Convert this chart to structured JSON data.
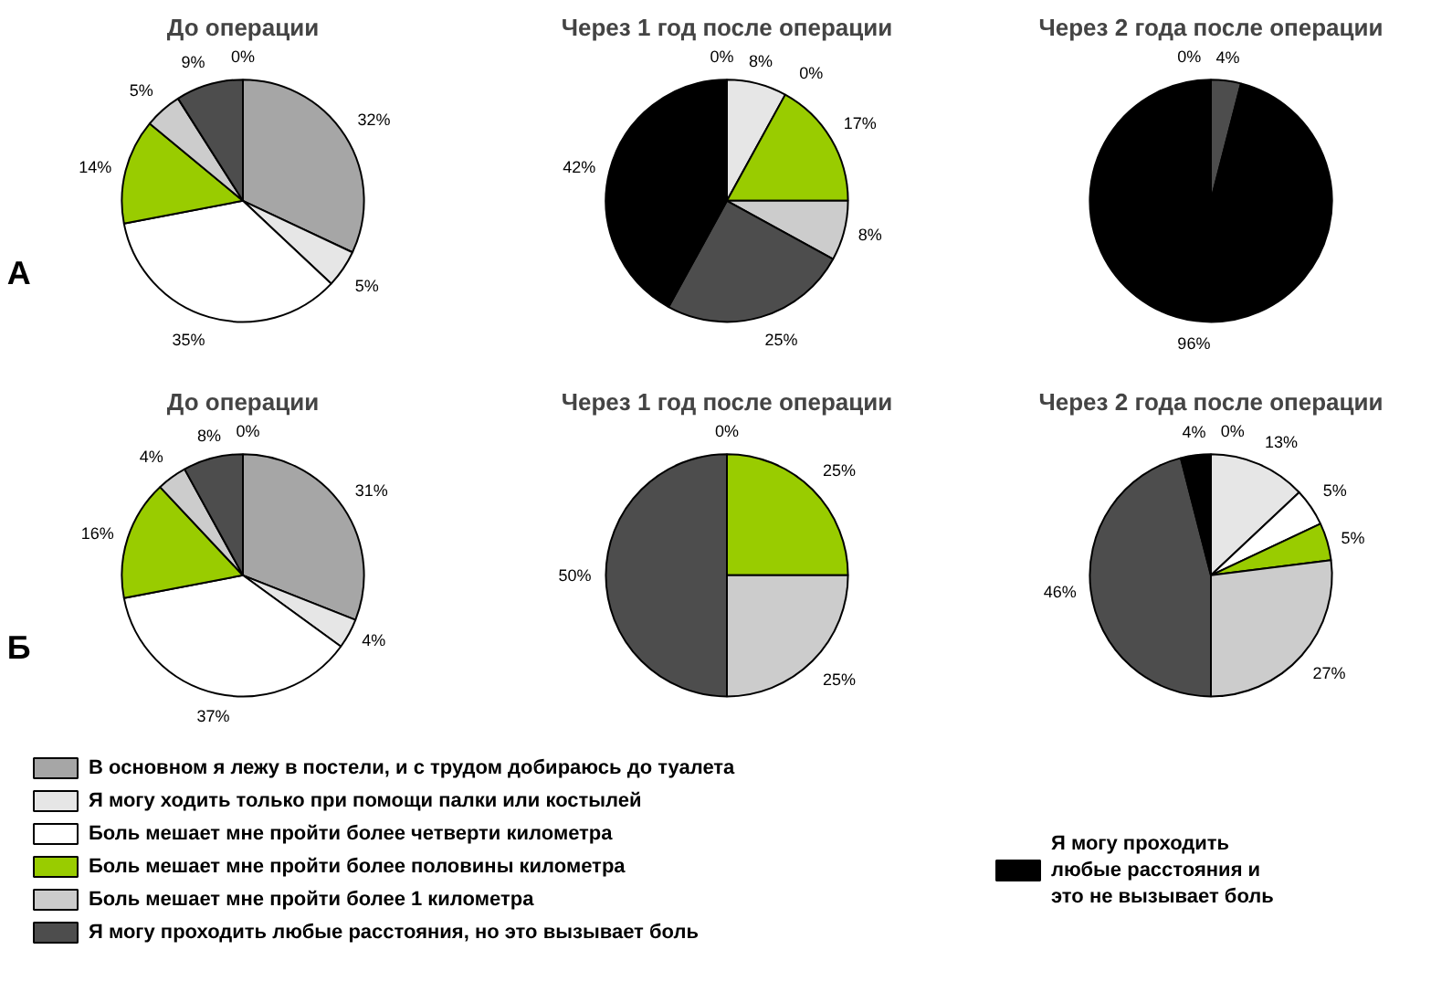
{
  "chart_data": [
    {
      "type": "pie",
      "title": "До операции",
      "categories": [
        "В основном я лежу в постели, и с трудом добираюсь до туалета",
        "Я могу ходить только при помощи палки или костылей",
        "Боль мешает мне пройти более четверти километра",
        "Боль мешает мне пройти более половины километра",
        "Боль мешает мне пройти более 1 километра",
        "Я могу проходить любые расстояния, но это вызывает боль",
        "Я могу проходить любые расстояния и это не вызывает боль"
      ],
      "values": [
        32,
        5,
        35,
        14,
        5,
        9,
        0
      ],
      "value_labels": [
        "32%",
        "5%",
        "35%",
        "14%",
        "5%",
        "9%",
        "0%"
      ],
      "colors": [
        "#a6a6a6",
        "#e6e6e6",
        "#ffffff",
        "#99cc00",
        "#cccccc",
        "#4d4d4d",
        "#000000"
      ],
      "legend": "bottom",
      "annotations": [
        "А"
      ]
    },
    {
      "type": "pie",
      "title": "Через 1 год после операции",
      "categories": [
        null,
        null,
        null,
        null,
        null,
        null,
        null
      ],
      "values": [
        0,
        8,
        0,
        17,
        8,
        25,
        42
      ],
      "value_labels": [
        "0%",
        "8%",
        "0%",
        "17%",
        "8%",
        "25%",
        "42%"
      ],
      "colors": [
        "#a6a6a6",
        "#e6e6e6",
        "#ffffff",
        "#99cc00",
        "#cccccc",
        "#4d4d4d",
        "#000000"
      ]
    },
    {
      "type": "pie",
      "title": "Через 2 года после операции",
      "categories": [
        null,
        null,
        null,
        null,
        null,
        null,
        null
      ],
      "values": [
        0,
        0,
        0,
        0,
        0,
        4,
        96
      ],
      "value_labels": [
        "0%",
        null,
        null,
        null,
        null,
        "4%",
        "96%"
      ],
      "colors": [
        "#a6a6a6",
        "#e6e6e6",
        "#ffffff",
        "#99cc00",
        "#cccccc",
        "#4d4d4d",
        "#000000"
      ]
    },
    {
      "type": "pie",
      "title": "До операции",
      "categories": [
        null,
        null,
        null,
        null,
        null,
        null,
        null
      ],
      "values": [
        31,
        4,
        37,
        16,
        4,
        8,
        0
      ],
      "value_labels": [
        "31%",
        "4%",
        "37%",
        "16%",
        "4%",
        "8%",
        "0%"
      ],
      "colors": [
        "#a6a6a6",
        "#e6e6e6",
        "#ffffff",
        "#99cc00",
        "#cccccc",
        "#4d4d4d",
        "#000000"
      ],
      "annotations": [
        "Б"
      ]
    },
    {
      "type": "pie",
      "title": "Через 1 год после операции",
      "categories": [
        null,
        null,
        null,
        null,
        null,
        null,
        null
      ],
      "values": [
        0,
        0,
        0,
        25,
        25,
        50,
        0
      ],
      "value_labels": [
        "0%",
        null,
        null,
        "25%",
        "25%",
        "50%",
        null
      ],
      "colors": [
        "#a6a6a6",
        "#e6e6e6",
        "#ffffff",
        "#99cc00",
        "#cccccc",
        "#4d4d4d",
        "#000000"
      ]
    },
    {
      "type": "pie",
      "title": "Через 2 года после операции",
      "categories": [
        null,
        null,
        null,
        null,
        null,
        null,
        null
      ],
      "values": [
        0,
        13,
        5,
        5,
        27,
        46,
        4
      ],
      "value_labels": [
        "0%",
        "13%",
        "5%",
        "5%",
        "27%",
        "46%",
        "4%"
      ],
      "colors": [
        "#a6a6a6",
        "#e6e6e6",
        "#ffffff",
        "#99cc00",
        "#cccccc",
        "#4d4d4d",
        "#000000"
      ]
    }
  ]
}
